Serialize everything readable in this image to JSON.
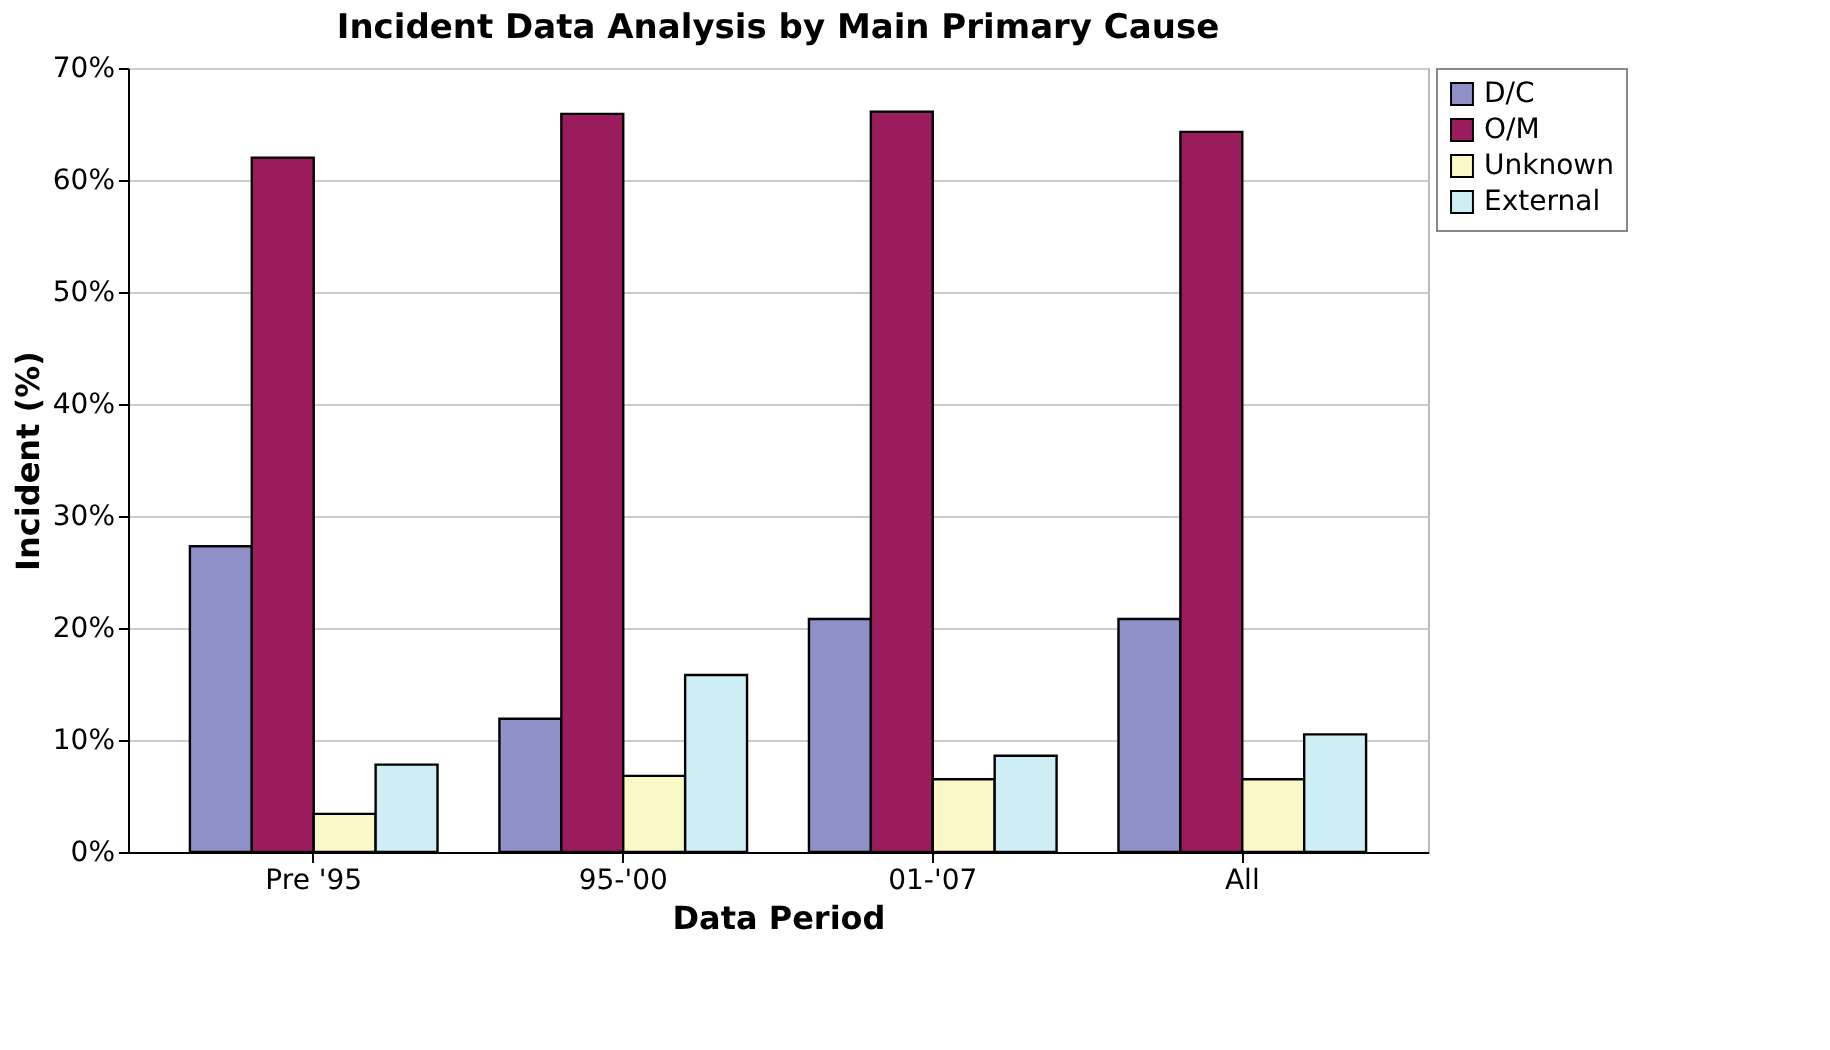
{
  "chart_data": {
    "type": "bar",
    "title": "Incident Data Analysis by Main Primary Cause",
    "xlabel": "Data Period",
    "ylabel": "Incident (%)",
    "categories": [
      "Pre '95",
      "95-'00",
      "01-'07",
      "All"
    ],
    "series": [
      {
        "name": "D/C",
        "color": "#9090c8",
        "values": [
          27.3,
          11.9,
          20.8,
          20.8
        ]
      },
      {
        "name": "O/M",
        "color": "#9b1c5c",
        "values": [
          62.0,
          65.9,
          66.1,
          64.3
        ]
      },
      {
        "name": "Unknown",
        "color": "#fbf8c8",
        "values": [
          3.4,
          6.8,
          6.5,
          6.5
        ]
      },
      {
        "name": "External",
        "color": "#cdeef5",
        "values": [
          7.8,
          15.8,
          8.6,
          10.5
        ]
      }
    ],
    "ylim": [
      0,
      70
    ],
    "yticks": [
      {
        "value": 0,
        "label": "0%"
      },
      {
        "value": 10,
        "label": "10%"
      },
      {
        "value": 20,
        "label": "20%"
      },
      {
        "value": 30,
        "label": "30%"
      },
      {
        "value": 40,
        "label": "40%"
      },
      {
        "value": 50,
        "label": "50%"
      },
      {
        "value": 60,
        "label": "60%"
      },
      {
        "value": 70,
        "label": "70%"
      }
    ],
    "grid": "y",
    "legend": "right"
  }
}
